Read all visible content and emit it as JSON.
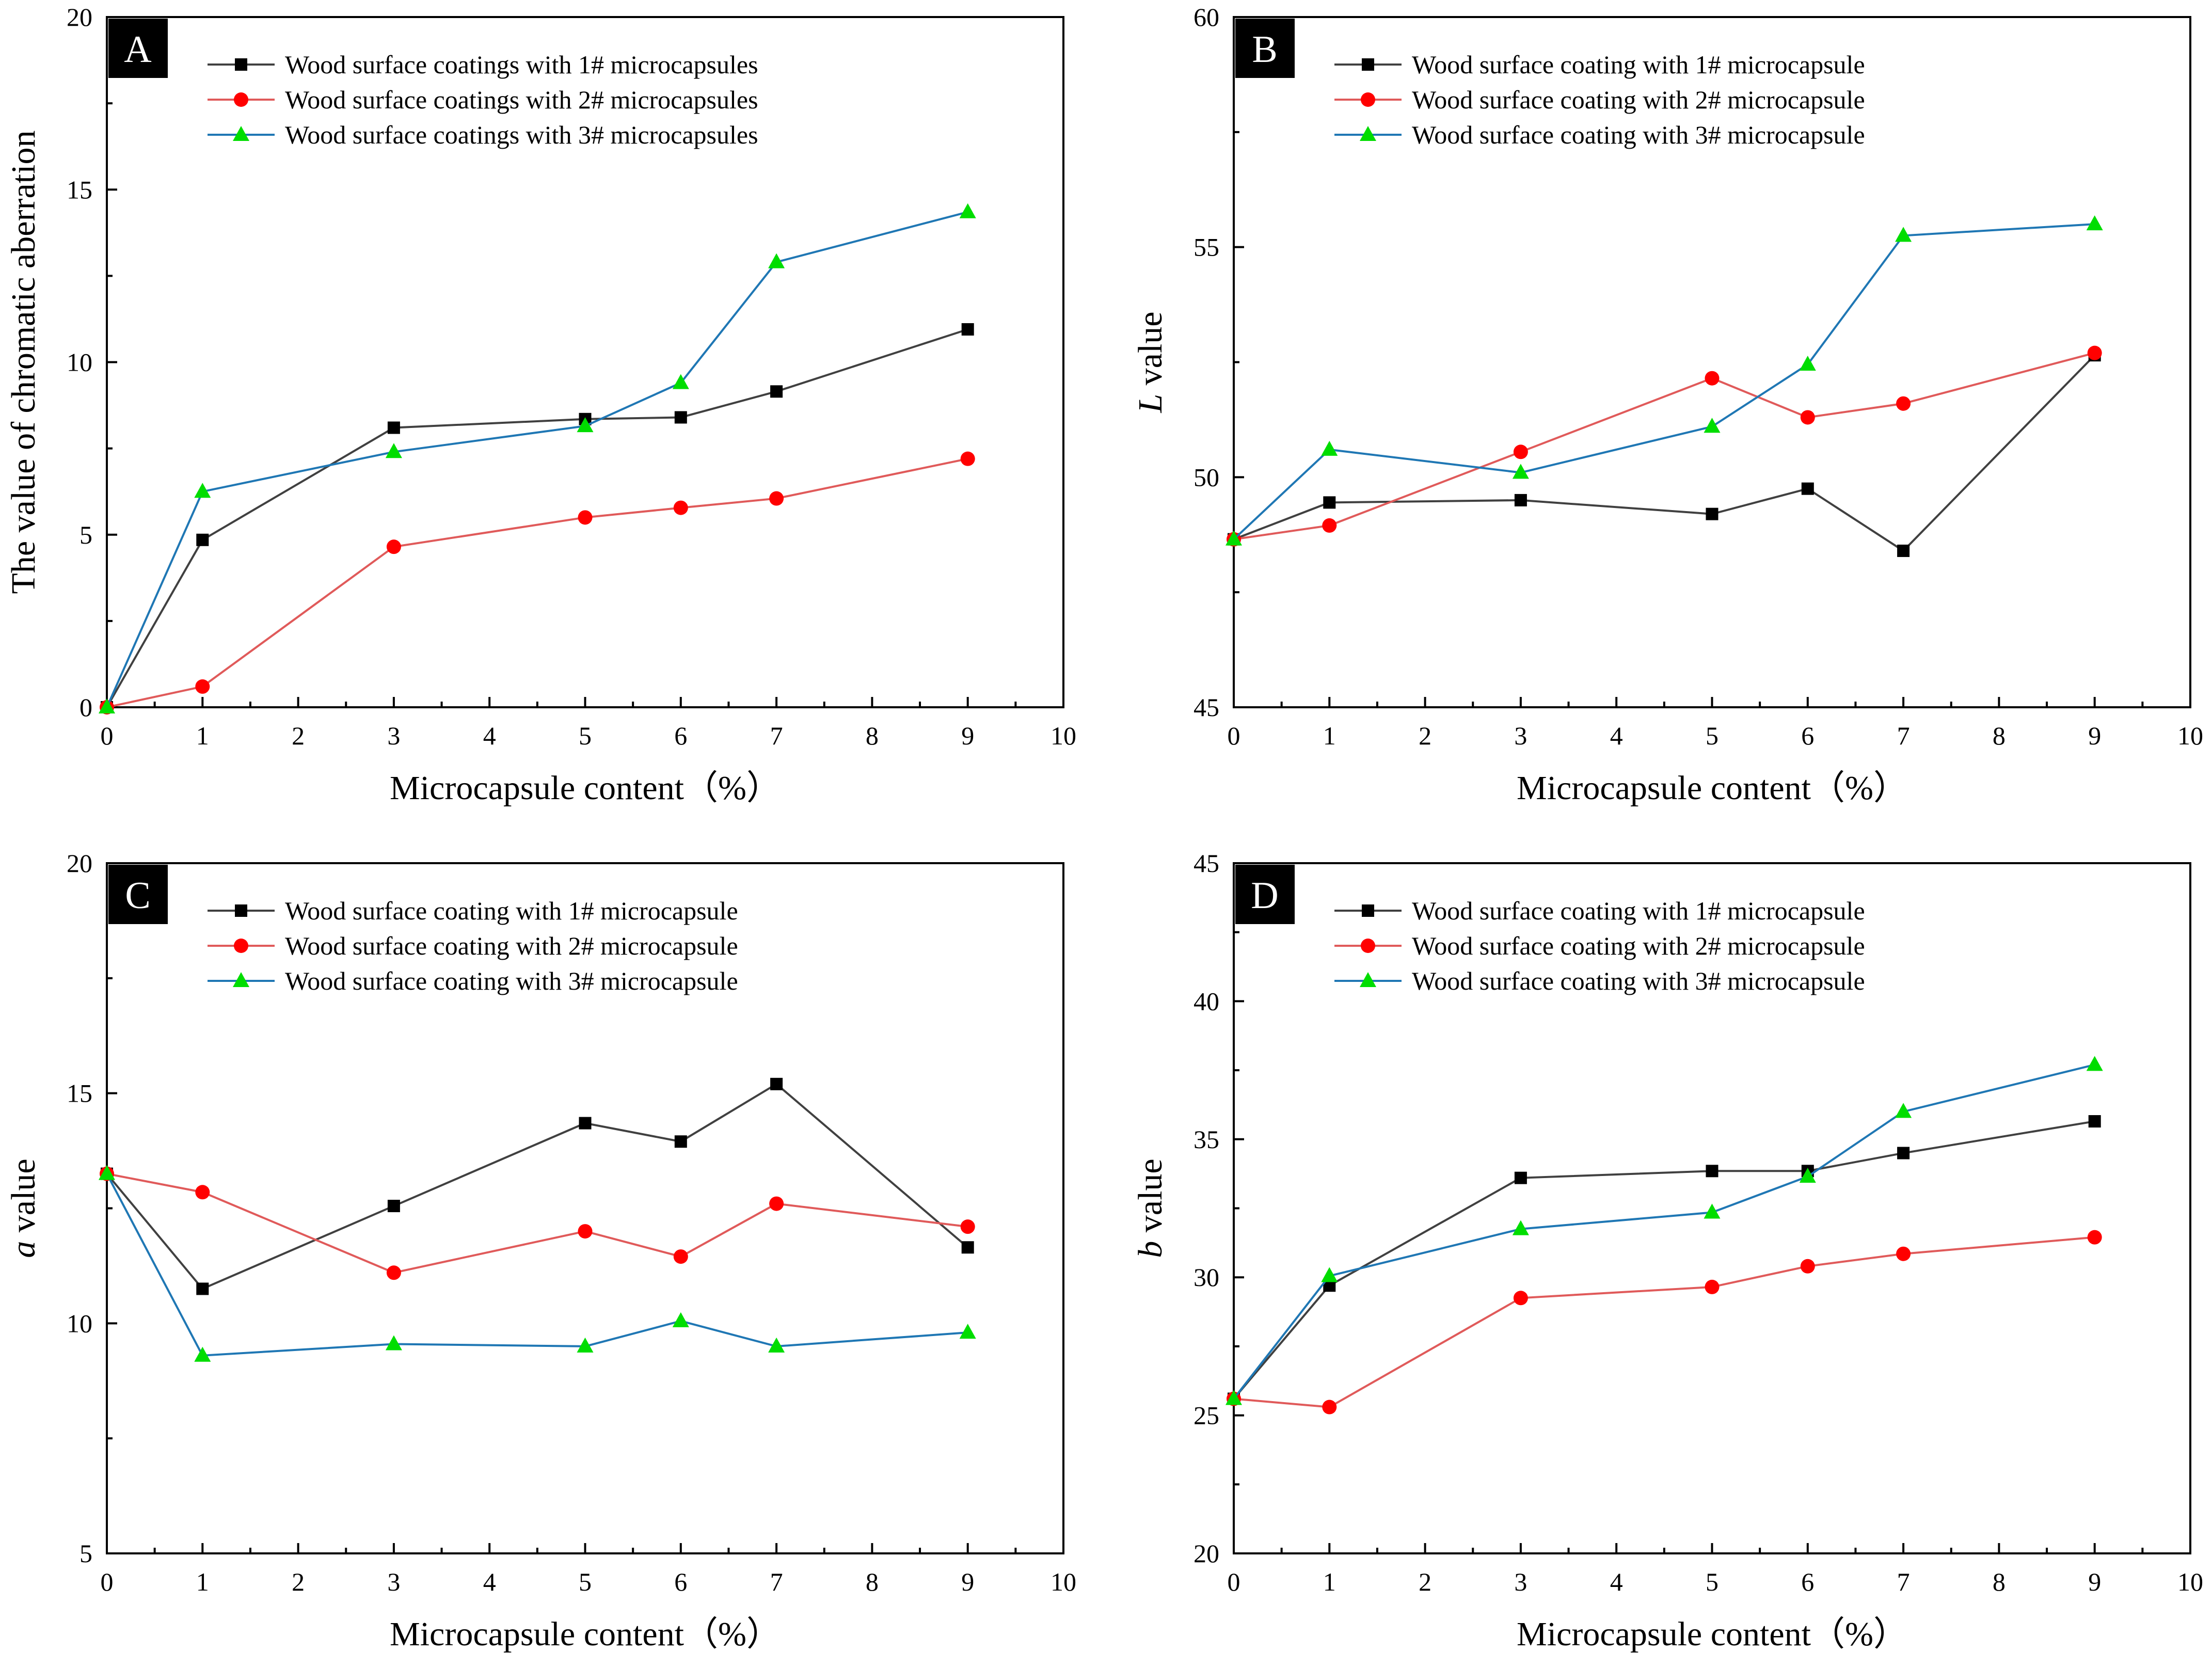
{
  "colors": {
    "series1_line": "#404040",
    "series1_marker": "#000000",
    "series2_line": "#e05a5a",
    "series2_marker": "#ff0000",
    "series3_line": "#1f77b4",
    "series3_marker": "#00dd00",
    "panel_label_bg": "#000000"
  },
  "chart_data": [
    {
      "panel": "A",
      "type": "line",
      "xlabel": "Microcapsule content（%）",
      "ylabel": "The value of chromatic aberration",
      "ylabel_italic": "",
      "xlim": [
        0,
        10
      ],
      "ylim": [
        0,
        20
      ],
      "xticks": [
        0,
        1,
        2,
        3,
        4,
        5,
        6,
        7,
        8,
        9,
        10
      ],
      "yticks": [
        0,
        5,
        10,
        15,
        20
      ],
      "legend_position": "top-left",
      "x": [
        0,
        1,
        3,
        5,
        6,
        7,
        9
      ],
      "series": [
        {
          "name": "Wood surface coatings with 1# microcapsules",
          "marker": "square",
          "values": [
            0,
            4.85,
            8.1,
            8.35,
            8.4,
            9.15,
            10.95
          ]
        },
        {
          "name": "Wood surface coatings with 2# microcapsules",
          "marker": "circle",
          "values": [
            0,
            0.6,
            4.65,
            5.5,
            5.78,
            6.05,
            7.2
          ]
        },
        {
          "name": "Wood surface coatings with 3# microcapsules",
          "marker": "triangle",
          "values": [
            0,
            6.25,
            7.4,
            8.15,
            9.4,
            12.9,
            14.35
          ]
        }
      ]
    },
    {
      "panel": "B",
      "type": "line",
      "xlabel": "Microcapsule content（%）",
      "ylabel": " value",
      "ylabel_italic": "L",
      "xlim": [
        0,
        10
      ],
      "ylim": [
        45,
        60
      ],
      "xticks": [
        0,
        1,
        2,
        3,
        4,
        5,
        6,
        7,
        8,
        9,
        10
      ],
      "yticks": [
        45,
        50,
        55,
        60
      ],
      "legend_position": "top-left",
      "x": [
        0,
        1,
        3,
        5,
        6,
        7,
        9
      ],
      "series": [
        {
          "name": "Wood surface coating with 1# microcapsule",
          "marker": "square",
          "values": [
            48.65,
            49.45,
            49.5,
            49.2,
            49.75,
            48.4,
            52.65
          ]
        },
        {
          "name": "Wood surface coating with 2# microcapsule",
          "marker": "circle",
          "values": [
            48.65,
            48.95,
            50.55,
            52.15,
            51.3,
            51.6,
            52.7
          ]
        },
        {
          "name": "Wood surface coating with 3# microcapsule",
          "marker": "triangle",
          "values": [
            48.65,
            50.6,
            50.1,
            51.1,
            52.45,
            55.25,
            55.5
          ]
        }
      ]
    },
    {
      "panel": "C",
      "type": "line",
      "xlabel": "Microcapsule content（%）",
      "ylabel": " value",
      "ylabel_italic": "a",
      "xlim": [
        0,
        10
      ],
      "ylim": [
        5,
        20
      ],
      "xticks": [
        0,
        1,
        2,
        3,
        4,
        5,
        6,
        7,
        8,
        9,
        10
      ],
      "yticks": [
        5,
        10,
        15,
        20
      ],
      "legend_position": "top-left",
      "x": [
        0,
        1,
        3,
        5,
        6,
        7,
        9
      ],
      "series": [
        {
          "name": "Wood surface coating with 1# microcapsule",
          "marker": "square",
          "values": [
            13.25,
            10.75,
            12.55,
            14.35,
            13.95,
            15.2,
            11.65
          ]
        },
        {
          "name": "Wood surface coating with 2# microcapsule",
          "marker": "circle",
          "values": [
            13.25,
            12.85,
            11.1,
            12.0,
            11.45,
            12.6,
            12.1
          ]
        },
        {
          "name": "Wood surface coating with 3# microcapsule",
          "marker": "triangle",
          "values": [
            13.25,
            9.3,
            9.55,
            9.5,
            10.05,
            9.5,
            9.8
          ]
        }
      ]
    },
    {
      "panel": "D",
      "type": "line",
      "xlabel": "Microcapsule content（%）",
      "ylabel": " value",
      "ylabel_italic": "b",
      "xlim": [
        0,
        10
      ],
      "ylim": [
        20,
        45
      ],
      "xticks": [
        0,
        1,
        2,
        3,
        4,
        5,
        6,
        7,
        8,
        9,
        10
      ],
      "yticks": [
        20,
        25,
        30,
        35,
        40,
        45
      ],
      "legend_position": "top-left",
      "x": [
        0,
        1,
        3,
        5,
        6,
        7,
        9
      ],
      "series": [
        {
          "name": "Wood surface coating with 1# microcapsule",
          "marker": "square",
          "values": [
            25.6,
            29.7,
            33.6,
            33.85,
            33.85,
            34.5,
            35.65
          ]
        },
        {
          "name": "Wood surface coating with 2# microcapsule",
          "marker": "circle",
          "values": [
            25.6,
            25.3,
            29.25,
            29.65,
            30.4,
            30.85,
            31.45
          ]
        },
        {
          "name": "Wood surface coating with 3# microcapsule",
          "marker": "triangle",
          "values": [
            25.6,
            30.05,
            31.75,
            32.35,
            33.65,
            36.0,
            37.7
          ]
        }
      ]
    }
  ]
}
